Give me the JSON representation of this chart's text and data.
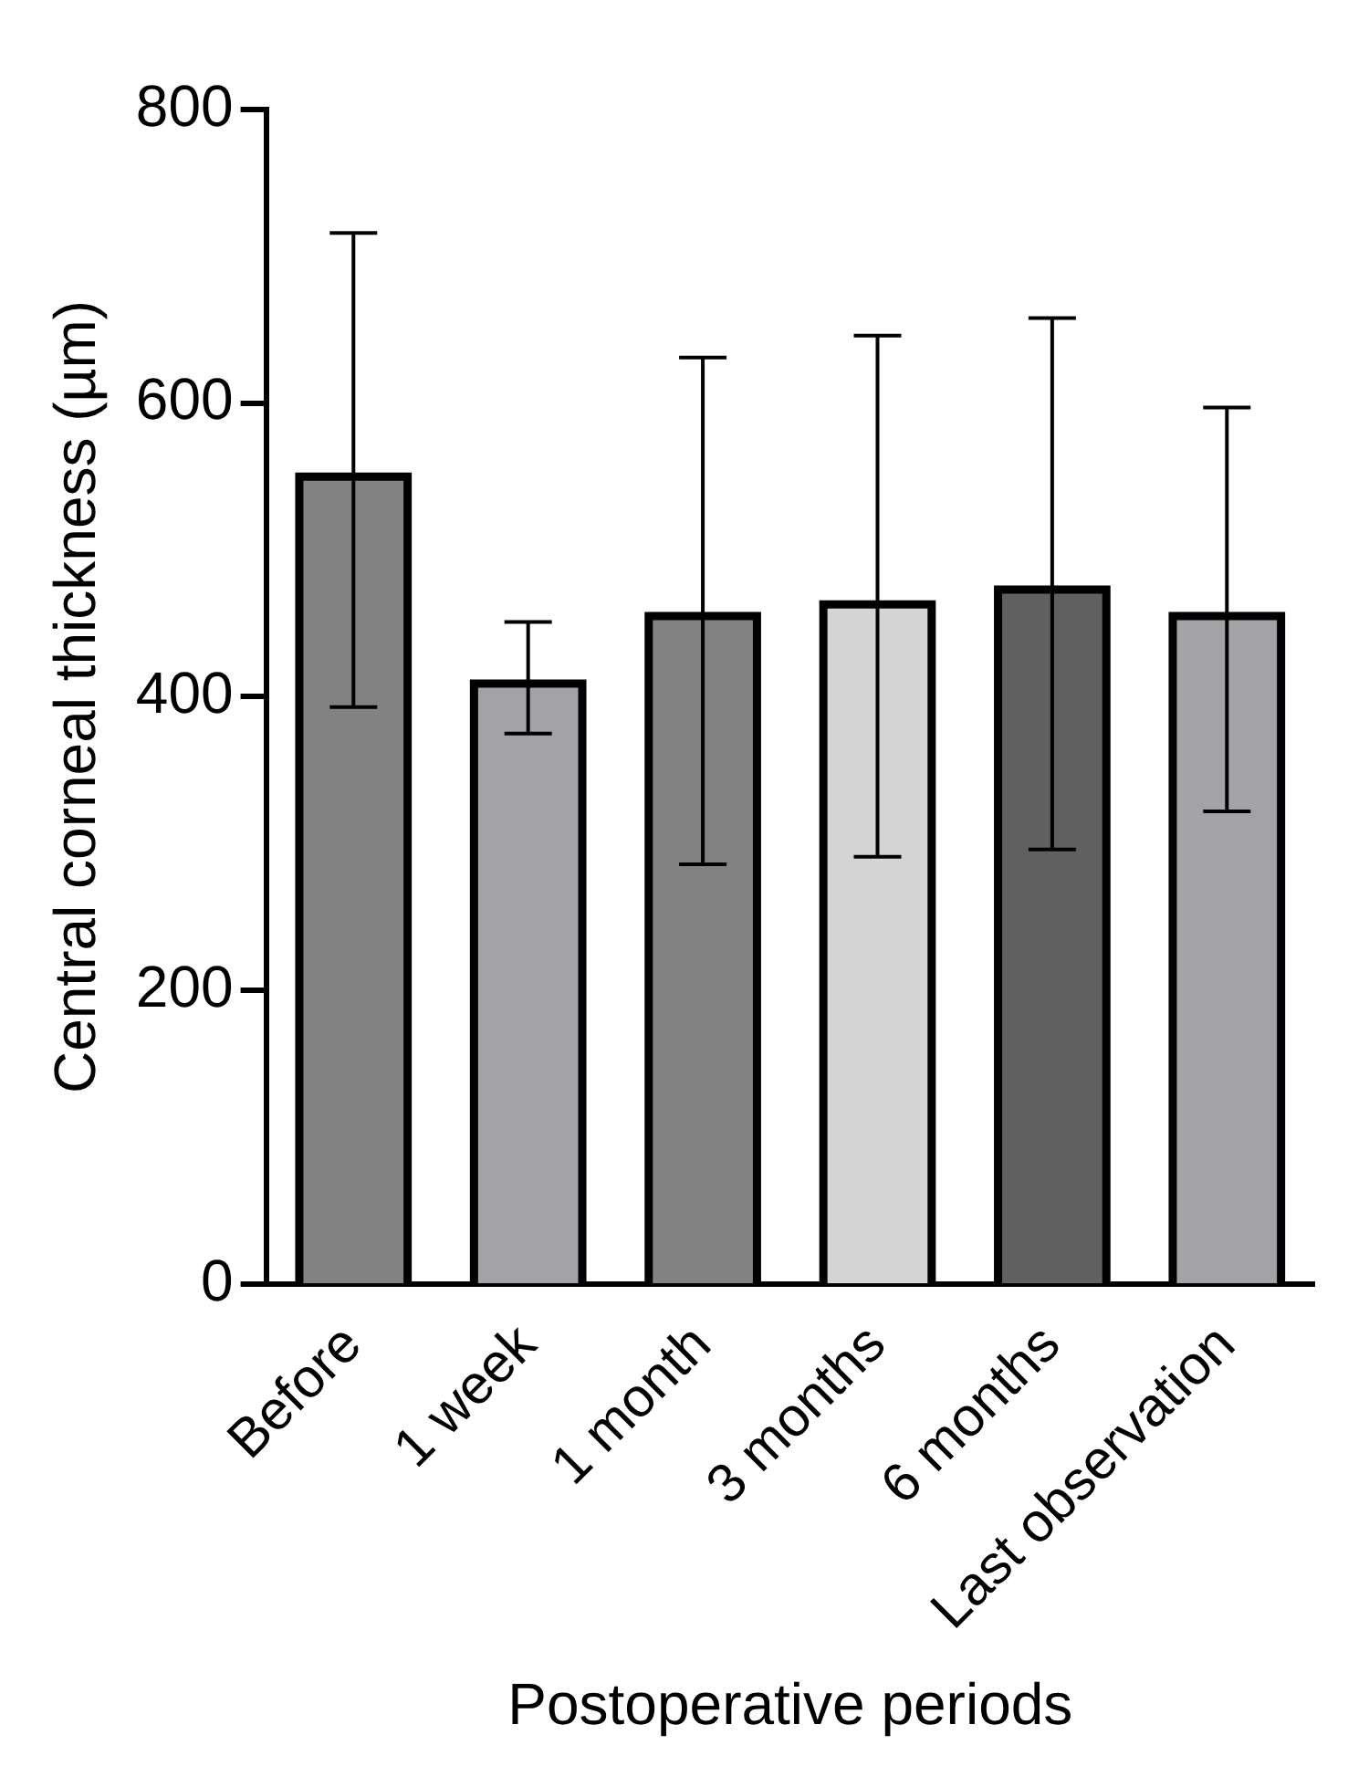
{
  "chart_data": {
    "type": "bar",
    "xlabel": "Postoperative periods",
    "ylabel": "Central corneal thickness (µm)",
    "categories": [
      "Before",
      "1 week",
      "1 month",
      "3 months",
      "6 months",
      "Last observation"
    ],
    "values": [
      550,
      409,
      455,
      463,
      473,
      455
    ],
    "colors": [
      "#828282",
      "#a3a3a7",
      "#828282",
      "#d4d4d4",
      "#606060",
      "#a3a3a7"
    ],
    "errors": [
      [
        393,
        716
      ],
      [
        375,
        451
      ],
      [
        286,
        631
      ],
      [
        291,
        646
      ],
      [
        296,
        658
      ],
      [
        322,
        597
      ]
    ],
    "ylim": [
      0,
      800
    ],
    "yticks": [
      0,
      200,
      400,
      600,
      800
    ],
    "grid": false,
    "legend": false
  }
}
